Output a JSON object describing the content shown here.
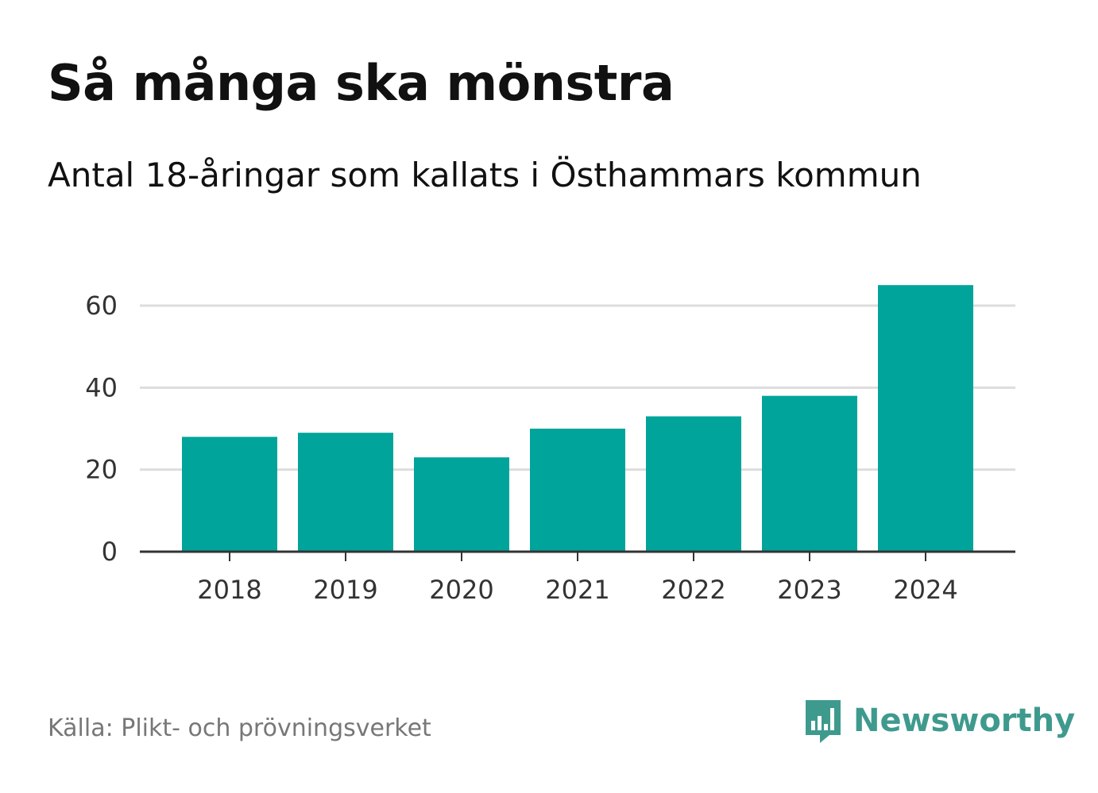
{
  "title": "Så många ska mönstra",
  "subtitle": "Antal 18-åringar som kallats i Östhammars kommun",
  "source": "Källa: Plikt- och prövningsverket",
  "brand": {
    "name": "Newsworthy",
    "color": "#3f9a8e"
  },
  "colors": {
    "bar": "#00a49a",
    "grid": "#dddddd",
    "axis": "#333333"
  },
  "chart_data": {
    "type": "bar",
    "categories": [
      "2018",
      "2019",
      "2020",
      "2021",
      "2022",
      "2023",
      "2024"
    ],
    "values": [
      28,
      29,
      23,
      30,
      33,
      38,
      65
    ],
    "yticks": [
      0,
      20,
      40,
      60
    ],
    "ylim": [
      0,
      65
    ],
    "grid": true,
    "xlabel": "",
    "ylabel": ""
  }
}
